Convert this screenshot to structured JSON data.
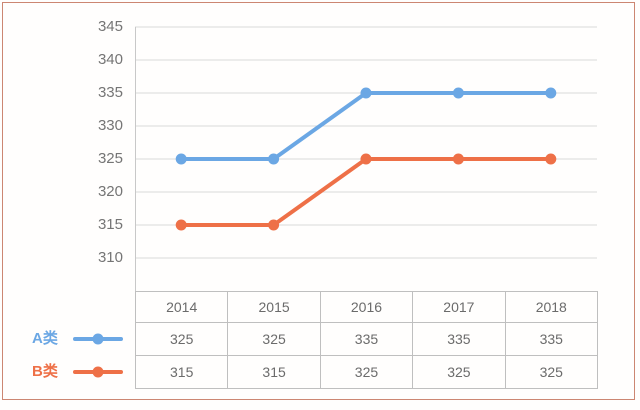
{
  "panel": {
    "background": "#fffefd",
    "border_color": "#cc8672"
  },
  "colors": {
    "gridline": "#d9d9d9",
    "axis_line": "#c8c8c8",
    "table_border": "#bfbfbf",
    "text_gray": "#6b6b6b",
    "series_a_blue": "#6ba7e4",
    "series_b_orange": "#ee7047"
  },
  "chart_data": {
    "type": "line",
    "title": "",
    "xlabel": "",
    "ylabel": "",
    "categories": [
      "2014",
      "2015",
      "2016",
      "2017",
      "2018"
    ],
    "series": [
      {
        "name": "A类",
        "color": "#6ba7e4",
        "values": [
          325,
          325,
          335,
          335,
          335
        ]
      },
      {
        "name": "B类",
        "color": "#ee7047",
        "values": [
          315,
          315,
          325,
          325,
          325
        ]
      }
    ],
    "ylim": [
      305,
      345
    ],
    "y_ticks": [
      345,
      340,
      335,
      330,
      325,
      320,
      315,
      310
    ],
    "grid": true,
    "marker": "circle",
    "legend_position": "bottom-left",
    "data_table_shown": true
  }
}
